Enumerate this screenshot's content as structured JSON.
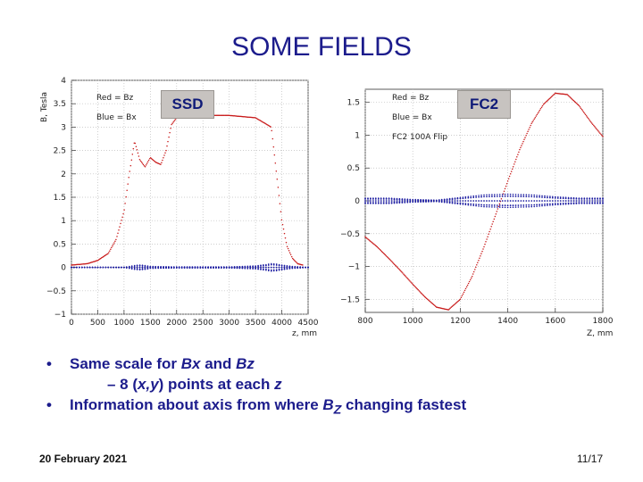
{
  "slide": {
    "title": "SOME FIELDS",
    "date": "20 February 2021",
    "page": "11/17"
  },
  "labels": {
    "left": "SSD",
    "right": "FC2"
  },
  "bullets": [
    {
      "pre": "Same scale for ",
      "i1": "Bx",
      "mid": " and ",
      "i2": "Bz",
      "post": ""
    },
    {
      "pre": "– 8 (",
      "i1": "x,y",
      "mid": ") points at each ",
      "i2": "z",
      "post": ""
    },
    {
      "pre": "Information about axis from where ",
      "i1": "B",
      "sub": "Z",
      "mid": " changing fastest",
      "i2": "",
      "post": ""
    }
  ],
  "colors": {
    "bz": "#c81818",
    "bx": "#1a1aa0",
    "title": "#1c1c8c"
  },
  "chart_data": [
    {
      "type": "line",
      "title": "",
      "xlabel": "z, mm",
      "ylabel": "B, Tesla",
      "xlim": [
        0,
        4500
      ],
      "ylim": [
        -1,
        4
      ],
      "xticks": [
        0,
        500,
        1000,
        1500,
        2000,
        2500,
        3000,
        3500,
        4000,
        4500
      ],
      "yticks": [
        -1,
        -0.5,
        0,
        0.5,
        1,
        1.5,
        2,
        2.5,
        3,
        3.5,
        4
      ],
      "ytick_labels": [
        "−1",
        "−0.5",
        "0",
        "0.5",
        "1",
        "1.5",
        "2",
        "2.5",
        "3",
        "3.5",
        "4"
      ],
      "grid": true,
      "legend": [
        "Red = Bz",
        "Blue = Bx"
      ],
      "series": [
        {
          "name": "Bz",
          "x": [
            0,
            300,
            500,
            700,
            850,
            1000,
            1100,
            1200,
            1300,
            1400,
            1500,
            1600,
            1700,
            1800,
            1900,
            2000,
            2100,
            2200,
            2500,
            3000,
            3500,
            3800,
            3900,
            4000,
            4100,
            4200,
            4300,
            4400
          ],
          "y": [
            0.05,
            0.08,
            0.15,
            0.3,
            0.6,
            1.2,
            2.0,
            2.7,
            2.3,
            2.15,
            2.35,
            2.25,
            2.2,
            2.5,
            3.05,
            3.2,
            3.25,
            3.25,
            3.25,
            3.25,
            3.2,
            3.0,
            2.0,
            1.0,
            0.45,
            0.2,
            0.08,
            0.05
          ]
        },
        {
          "name": "Bx",
          "x": [
            0,
            500,
            1000,
            1100,
            1200,
            1300,
            1400,
            1500,
            2000,
            3000,
            3500,
            3700,
            3800,
            3900,
            4000,
            4200,
            4500
          ],
          "y": [
            0,
            0,
            0,
            0.02,
            0.04,
            0.05,
            0.04,
            0.02,
            0.01,
            0.01,
            0.03,
            0.06,
            0.08,
            0.07,
            0.05,
            0.02,
            0
          ]
        }
      ]
    },
    {
      "type": "line",
      "title": "",
      "xlabel": "Z, mm",
      "ylabel": "",
      "xlim": [
        800,
        1800
      ],
      "ylim": [
        -1.7,
        1.7
      ],
      "xticks": [
        800,
        1000,
        1200,
        1400,
        1600,
        1800
      ],
      "yticks": [
        -1.5,
        -1,
        -0.5,
        0,
        0.5,
        1,
        1.5
      ],
      "ytick_labels": [
        "−1.5",
        "−1",
        "−0.5",
        "0",
        "0.5",
        "1",
        "1.5"
      ],
      "grid": true,
      "legend": [
        "Red = Bz",
        "Blue = Bx",
        "FC2 100A Flip"
      ],
      "series": [
        {
          "name": "Bz",
          "x": [
            800,
            850,
            900,
            950,
            1000,
            1050,
            1100,
            1150,
            1200,
            1250,
            1300,
            1350,
            1400,
            1450,
            1500,
            1550,
            1600,
            1650,
            1700,
            1750,
            1800
          ],
          "y": [
            -0.55,
            -0.7,
            -0.88,
            -1.07,
            -1.27,
            -1.46,
            -1.62,
            -1.66,
            -1.5,
            -1.15,
            -0.7,
            -0.2,
            0.3,
            0.78,
            1.18,
            1.47,
            1.64,
            1.62,
            1.45,
            1.2,
            0.98
          ]
        },
        {
          "name": "Bx",
          "x": [
            800,
            900,
            1000,
            1100,
            1200,
            1300,
            1400,
            1500,
            1600,
            1700,
            1800
          ],
          "y": [
            0.04,
            0.04,
            0.02,
            0.01,
            0.05,
            0.09,
            0.1,
            0.09,
            0.06,
            0.04,
            0.04
          ]
        }
      ]
    }
  ]
}
